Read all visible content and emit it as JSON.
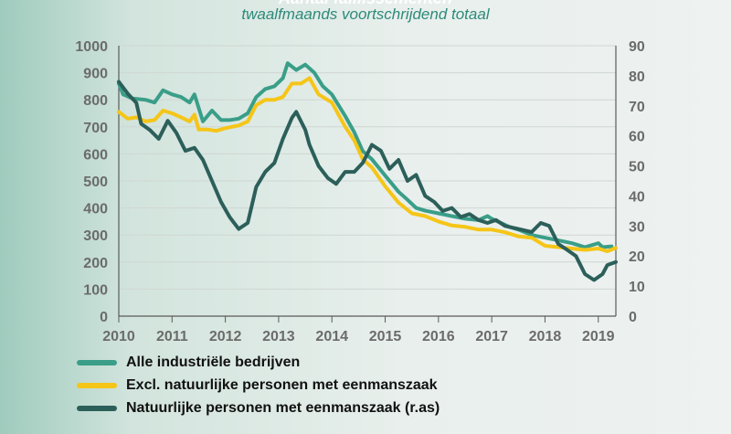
{
  "header": {
    "title": "Aantal faillissementen",
    "subtitle": "twaalfmaands voortschrijdend totaal"
  },
  "colors": {
    "teal": "#3a9e88",
    "yellow": "#f5c518",
    "dark": "#2c5f5a",
    "grid": "#cfd6d4",
    "axis": "#5a5a5a",
    "tick_label": "#6b6b6b"
  },
  "chart_data": {
    "type": "line",
    "title": "Aantal faillissementen",
    "subtitle": "twaalfmaands voortschrijdend totaal",
    "xlim": [
      2010,
      2019.33
    ],
    "x_ticks": [
      2010,
      2011,
      2012,
      2013,
      2014,
      2015,
      2016,
      2017,
      2018,
      2019
    ],
    "ylim": [
      0,
      1000
    ],
    "y_ticks": [
      0,
      100,
      200,
      300,
      400,
      500,
      600,
      700,
      800,
      900,
      1000
    ],
    "y2lim": [
      0,
      90
    ],
    "y2_ticks": [
      0,
      10,
      20,
      30,
      40,
      50,
      60,
      70,
      80,
      90
    ],
    "grid": true,
    "legend_position": "bottom-left",
    "series": [
      {
        "name": "Alle industriële bedrijven",
        "axis": "left",
        "color": "#3a9e88",
        "points": [
          [
            2010.0,
            860
          ],
          [
            2010.08,
            820
          ],
          [
            2010.25,
            805
          ],
          [
            2010.5,
            800
          ],
          [
            2010.67,
            790
          ],
          [
            2010.83,
            835
          ],
          [
            2011.0,
            820
          ],
          [
            2011.17,
            810
          ],
          [
            2011.33,
            790
          ],
          [
            2011.42,
            820
          ],
          [
            2011.58,
            720
          ],
          [
            2011.75,
            760
          ],
          [
            2011.92,
            725
          ],
          [
            2012.08,
            725
          ],
          [
            2012.25,
            730
          ],
          [
            2012.42,
            750
          ],
          [
            2012.58,
            810
          ],
          [
            2012.75,
            840
          ],
          [
            2012.92,
            850
          ],
          [
            2013.08,
            880
          ],
          [
            2013.17,
            935
          ],
          [
            2013.33,
            910
          ],
          [
            2013.5,
            930
          ],
          [
            2013.67,
            900
          ],
          [
            2013.83,
            850
          ],
          [
            2014.0,
            820
          ],
          [
            2014.25,
            740
          ],
          [
            2014.42,
            680
          ],
          [
            2014.58,
            610
          ],
          [
            2014.75,
            580
          ],
          [
            2015.0,
            520
          ],
          [
            2015.25,
            460
          ],
          [
            2015.42,
            430
          ],
          [
            2015.58,
            400
          ],
          [
            2015.75,
            390
          ],
          [
            2016.0,
            380
          ],
          [
            2016.25,
            370
          ],
          [
            2016.5,
            360
          ],
          [
            2016.75,
            355
          ],
          [
            2016.92,
            370
          ],
          [
            2017.0,
            360
          ],
          [
            2017.17,
            345
          ],
          [
            2017.33,
            330
          ],
          [
            2017.5,
            320
          ],
          [
            2017.75,
            300
          ],
          [
            2018.0,
            290
          ],
          [
            2018.25,
            280
          ],
          [
            2018.5,
            270
          ],
          [
            2018.75,
            255
          ],
          [
            2018.92,
            265
          ],
          [
            2019.0,
            270
          ],
          [
            2019.08,
            255
          ],
          [
            2019.25,
            258
          ]
        ]
      },
      {
        "name": "Excl. natuurlijke personen met eenmanszaak",
        "axis": "left",
        "color": "#f5c518",
        "points": [
          [
            2010.0,
            755
          ],
          [
            2010.17,
            730
          ],
          [
            2010.33,
            735
          ],
          [
            2010.5,
            720
          ],
          [
            2010.67,
            725
          ],
          [
            2010.83,
            760
          ],
          [
            2011.0,
            750
          ],
          [
            2011.17,
            735
          ],
          [
            2011.33,
            720
          ],
          [
            2011.42,
            745
          ],
          [
            2011.5,
            690
          ],
          [
            2011.67,
            690
          ],
          [
            2011.83,
            685
          ],
          [
            2012.0,
            695
          ],
          [
            2012.25,
            705
          ],
          [
            2012.42,
            720
          ],
          [
            2012.58,
            780
          ],
          [
            2012.75,
            800
          ],
          [
            2012.92,
            800
          ],
          [
            2013.08,
            810
          ],
          [
            2013.25,
            860
          ],
          [
            2013.42,
            860
          ],
          [
            2013.58,
            880
          ],
          [
            2013.75,
            820
          ],
          [
            2014.0,
            790
          ],
          [
            2014.25,
            700
          ],
          [
            2014.42,
            650
          ],
          [
            2014.58,
            580
          ],
          [
            2014.75,
            550
          ],
          [
            2015.0,
            480
          ],
          [
            2015.25,
            420
          ],
          [
            2015.5,
            380
          ],
          [
            2015.75,
            370
          ],
          [
            2016.0,
            350
          ],
          [
            2016.25,
            335
          ],
          [
            2016.5,
            330
          ],
          [
            2016.75,
            320
          ],
          [
            2017.0,
            320
          ],
          [
            2017.25,
            310
          ],
          [
            2017.5,
            295
          ],
          [
            2017.75,
            290
          ],
          [
            2018.0,
            260
          ],
          [
            2018.25,
            255
          ],
          [
            2018.5,
            250
          ],
          [
            2018.75,
            245
          ],
          [
            2019.0,
            250
          ],
          [
            2019.17,
            240
          ],
          [
            2019.33,
            252
          ]
        ]
      },
      {
        "name": "Natuurlijke personen met eenmanszaak (r.as)",
        "axis": "right",
        "color": "#2c5f5a",
        "points": [
          [
            2010.0,
            78
          ],
          [
            2010.17,
            74
          ],
          [
            2010.33,
            71
          ],
          [
            2010.42,
            64
          ],
          [
            2010.58,
            62
          ],
          [
            2010.75,
            59
          ],
          [
            2010.92,
            65
          ],
          [
            2011.08,
            61
          ],
          [
            2011.25,
            55
          ],
          [
            2011.42,
            56
          ],
          [
            2011.58,
            52
          ],
          [
            2011.75,
            45
          ],
          [
            2011.92,
            38
          ],
          [
            2012.08,
            33
          ],
          [
            2012.25,
            29
          ],
          [
            2012.42,
            31
          ],
          [
            2012.58,
            43
          ],
          [
            2012.75,
            48
          ],
          [
            2012.92,
            51
          ],
          [
            2013.08,
            59
          ],
          [
            2013.25,
            66
          ],
          [
            2013.33,
            68
          ],
          [
            2013.5,
            62
          ],
          [
            2013.58,
            57
          ],
          [
            2013.75,
            50
          ],
          [
            2013.92,
            46
          ],
          [
            2014.08,
            44
          ],
          [
            2014.25,
            48
          ],
          [
            2014.42,
            48
          ],
          [
            2014.58,
            51
          ],
          [
            2014.75,
            57
          ],
          [
            2014.92,
            55
          ],
          [
            2015.08,
            49
          ],
          [
            2015.25,
            52
          ],
          [
            2015.42,
            45
          ],
          [
            2015.58,
            47
          ],
          [
            2015.75,
            40
          ],
          [
            2015.92,
            38
          ],
          [
            2016.08,
            35
          ],
          [
            2016.25,
            36
          ],
          [
            2016.42,
            33
          ],
          [
            2016.58,
            34
          ],
          [
            2016.75,
            32
          ],
          [
            2016.92,
            31
          ],
          [
            2017.08,
            32
          ],
          [
            2017.25,
            30
          ],
          [
            2017.5,
            29
          ],
          [
            2017.75,
            28
          ],
          [
            2017.92,
            31
          ],
          [
            2018.08,
            30
          ],
          [
            2018.25,
            24
          ],
          [
            2018.42,
            22
          ],
          [
            2018.58,
            20
          ],
          [
            2018.75,
            14
          ],
          [
            2018.92,
            12
          ],
          [
            2019.08,
            14
          ],
          [
            2019.17,
            17
          ],
          [
            2019.33,
            18
          ]
        ]
      }
    ]
  }
}
